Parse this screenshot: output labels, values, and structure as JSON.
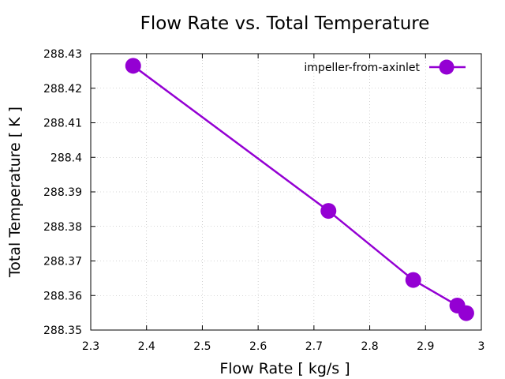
{
  "chart_data": {
    "type": "line",
    "title": "Flow Rate vs. Total Temperature",
    "xlabel": "Flow Rate [ kg/s ]",
    "ylabel": "Total Temperature [ K ]",
    "xlim": [
      2.3,
      3.0
    ],
    "ylim": [
      288.35,
      288.43
    ],
    "xticks": [
      "2.3",
      "2.4",
      "2.5",
      "2.6",
      "2.7",
      "2.8",
      "2.9",
      "3"
    ],
    "yticks": [
      "288.35",
      "288.36",
      "288.37",
      "288.38",
      "288.39",
      "288.4",
      "288.41",
      "288.42",
      "288.43"
    ],
    "grid": true,
    "legend_position": "top-right",
    "series": [
      {
        "name": "impeller-from-axinlet",
        "color": "#9400d3",
        "marker": "circle",
        "x": [
          2.376,
          2.726,
          2.878,
          2.957,
          2.973
        ],
        "y": [
          288.4265,
          288.3845,
          288.3645,
          288.3571,
          288.3549
        ]
      }
    ]
  }
}
